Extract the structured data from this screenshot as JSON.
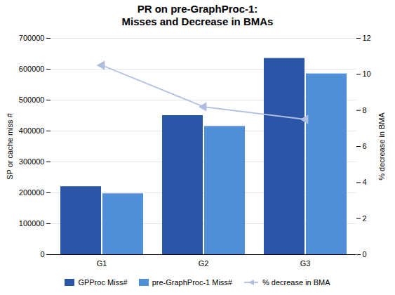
{
  "chart_data": {
    "type": "bar",
    "title": "PR on pre-GraphProc-1:\nMisses and Decrease in BMAs",
    "categories": [
      "G1",
      "G2",
      "G3"
    ],
    "series": [
      {
        "name": "GPProc Miss#",
        "color": "#2B56A8",
        "values": [
          220000,
          450000,
          635000
        ]
      },
      {
        "name": "pre-GraphProc-1 Miss#",
        "color": "#4F8FD8",
        "values": [
          197000,
          415000,
          585000
        ]
      },
      {
        "name": "% decrease in BMA",
        "type": "line",
        "axis": "y2",
        "color": "#B0BFDF",
        "marker": "triangle-left",
        "values": [
          10.5,
          8.2,
          7.5
        ]
      }
    ],
    "ylabel": "SP or cache miss #",
    "y2label": "% decrease in BMA",
    "ylim": [
      0,
      700000
    ],
    "yticks": [
      0,
      100000,
      200000,
      300000,
      400000,
      500000,
      600000,
      700000
    ],
    "y2lim": [
      0,
      12
    ],
    "y2ticks": [
      0,
      2,
      4,
      6,
      8,
      10,
      12
    ],
    "grid": true,
    "legend": "bottom"
  }
}
